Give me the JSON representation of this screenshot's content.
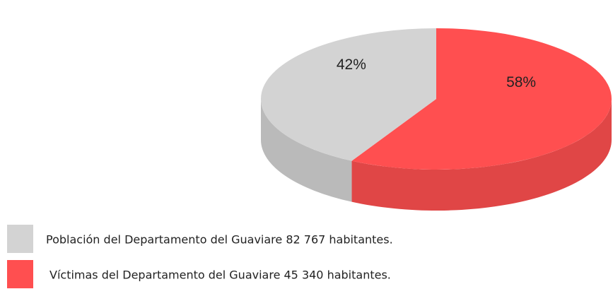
{
  "chart_data": {
    "type": "pie",
    "three_d": true,
    "categories": [
      "Población del Departamento del Guaviare 82 767 habitantes.",
      "Víctimas del Departamento del Guaviare 45 340 habitantes."
    ],
    "values": [
      42,
      58
    ],
    "value_labels": [
      "42%",
      "58%"
    ],
    "colors": [
      "#d3d3d3",
      "#ff4f50"
    ],
    "legend": "bottom-left"
  }
}
